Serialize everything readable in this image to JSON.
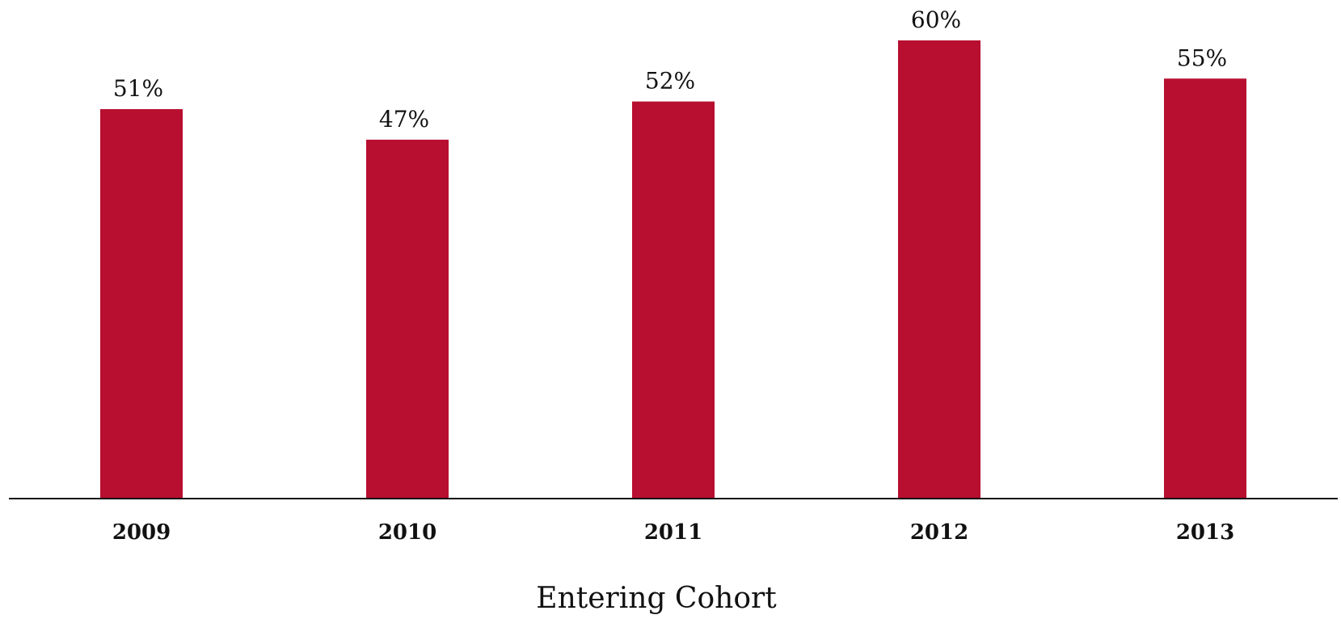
{
  "chart_data": {
    "type": "bar",
    "categories": [
      "2009",
      "2010",
      "2011",
      "2012",
      "2013"
    ],
    "values": [
      51,
      47,
      52,
      60,
      55
    ],
    "value_labels": [
      "51%",
      "47%",
      "52%",
      "60%",
      "55%"
    ],
    "title": "",
    "xlabel": "Entering Cohort",
    "ylabel": "",
    "ylim": [
      0,
      60
    ],
    "grid": false,
    "legend": "none",
    "bar_color": "#B80E30",
    "axis_color": "#111111"
  }
}
